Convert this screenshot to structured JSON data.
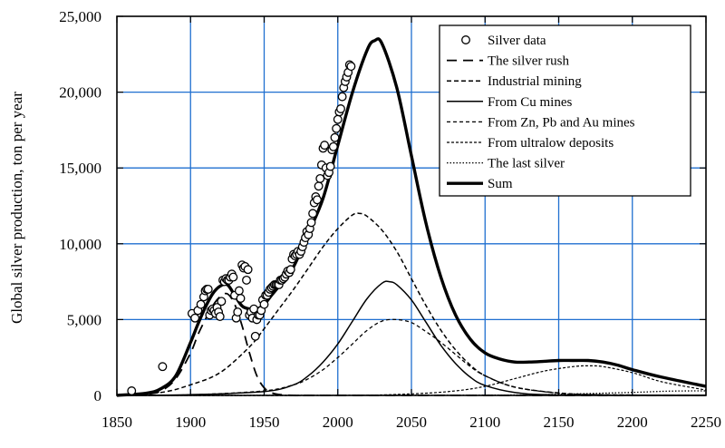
{
  "chart_data": {
    "type": "line",
    "title": "",
    "xlabel": "",
    "ylabel": "Global silver production, ton per year",
    "xlim": [
      1850,
      2250
    ],
    "ylim": [
      0,
      25000
    ],
    "x_ticks": [
      1850,
      1900,
      1950,
      2000,
      2050,
      2100,
      2150,
      2200,
      2250
    ],
    "x_tick_labels": [
      "1850",
      "1900",
      "1950",
      "2000",
      "2050",
      "2100",
      "2150",
      "2200",
      "2250"
    ],
    "y_ticks": [
      0,
      5000,
      10000,
      15000,
      20000,
      25000
    ],
    "y_tick_labels": [
      "0",
      "5,000",
      "10,000",
      "15,000",
      "20,000",
      "25,000"
    ],
    "grid": true,
    "grid_color": "#1f6fd0",
    "legend_position": "top-right",
    "series": [
      {
        "name": "Silver data",
        "style": "markers",
        "x": [
          1860,
          1881,
          1901,
          1903,
          1905,
          1907,
          1909,
          1910,
          1911,
          1912,
          1913,
          1914,
          1915,
          1916,
          1917,
          1918,
          1919,
          1920,
          1921,
          1922,
          1923,
          1924,
          1925,
          1926,
          1927,
          1928,
          1929,
          1930,
          1931,
          1932,
          1933,
          1934,
          1935,
          1936,
          1937,
          1938,
          1939,
          1940,
          1941,
          1942,
          1943,
          1944,
          1945,
          1946,
          1947,
          1948,
          1949,
          1950,
          1951,
          1952,
          1953,
          1954,
          1955,
          1956,
          1957,
          1958,
          1959,
          1960,
          1961,
          1962,
          1963,
          1964,
          1965,
          1966,
          1967,
          1968,
          1969,
          1970,
          1971,
          1972,
          1973,
          1974,
          1975,
          1976,
          1977,
          1978,
          1979,
          1980,
          1981,
          1982,
          1983,
          1984,
          1985,
          1986,
          1987,
          1988,
          1989,
          1990,
          1991,
          1992,
          1993,
          1994,
          1995,
          1996,
          1997,
          1998,
          1999,
          2000,
          2001,
          2002,
          2003,
          2004,
          2005,
          2006,
          2007,
          2008,
          2009
        ],
        "y": [
          300,
          1900,
          5400,
          5100,
          5600,
          6000,
          6500,
          6900,
          7000,
          7000,
          5300,
          5600,
          5700,
          5600,
          5400,
          5800,
          5500,
          5200,
          6200,
          7600,
          7500,
          7700,
          7600,
          7600,
          7800,
          8000,
          7800,
          6600,
          5100,
          5500,
          6900,
          6400,
          8600,
          8400,
          8500,
          7600,
          8300,
          5300,
          5500,
          5100,
          5700,
          3900,
          5000,
          5300,
          5300,
          5600,
          6300,
          6000,
          6600,
          6600,
          6800,
          7000,
          7100,
          7200,
          7300,
          7300,
          7300,
          7300,
          7600,
          7600,
          7700,
          7800,
          8000,
          8200,
          8100,
          8300,
          9000,
          9300,
          9200,
          9300,
          9500,
          9300,
          9500,
          9800,
          10100,
          10400,
          10800,
          10600,
          11000,
          11400,
          12000,
          12700,
          13100,
          12900,
          13800,
          14300,
          15200,
          16300,
          16500,
          15000,
          14500,
          14700,
          15100,
          16200,
          16400,
          17000,
          17600,
          18200,
          18700,
          18900,
          19700,
          20300,
          20700,
          21000,
          21300,
          21800,
          21700
        ]
      },
      {
        "name": "The silver rush",
        "style": "long-dash",
        "x": [
          1850,
          1870,
          1880,
          1890,
          1900,
          1905,
          1910,
          1915,
          1920,
          1925,
          1930,
          1935,
          1940,
          1945,
          1950,
          1955,
          1960,
          1970,
          1980,
          2000,
          2250
        ],
        "y": [
          0,
          80,
          300,
          1100,
          2800,
          4000,
          5000,
          5900,
          6500,
          6700,
          6000,
          4600,
          2800,
          1300,
          500,
          180,
          60,
          0,
          0,
          0,
          0
        ]
      },
      {
        "name": "Industrial mining",
        "style": "short-dash",
        "x": [
          1850,
          1880,
          1900,
          1920,
          1940,
          1950,
          1960,
          1970,
          1980,
          1990,
          2000,
          2010,
          2015,
          2020,
          2030,
          2040,
          2050,
          2060,
          2070,
          2080,
          2090,
          2100,
          2120,
          2150,
          2180,
          2250
        ],
        "y": [
          50,
          200,
          700,
          1500,
          3200,
          4400,
          5700,
          7000,
          8400,
          9800,
          11000,
          11900,
          12000,
          11800,
          10900,
          9500,
          7700,
          5900,
          4300,
          3000,
          2000,
          1300,
          550,
          160,
          40,
          0
        ]
      },
      {
        "name": "From Cu mines",
        "style": "solid",
        "x": [
          1850,
          1900,
          1950,
          1970,
          1980,
          1990,
          2000,
          2010,
          2020,
          2030,
          2035,
          2040,
          2050,
          2060,
          2070,
          2080,
          2090,
          2100,
          2120,
          2150,
          2250
        ],
        "y": [
          0,
          50,
          250,
          700,
          1300,
          2200,
          3400,
          4900,
          6400,
          7400,
          7500,
          7300,
          6300,
          4800,
          3300,
          2100,
          1200,
          650,
          200,
          30,
          0
        ]
      },
      {
        "name": "From Zn, Pb and Au mines",
        "style": "dash",
        "x": [
          1850,
          1900,
          1950,
          1970,
          1980,
          1990,
          2000,
          2010,
          2020,
          2030,
          2040,
          2050,
          2060,
          2070,
          2080,
          2090,
          2100,
          2120,
          2150,
          2180,
          2250
        ],
        "y": [
          0,
          40,
          300,
          700,
          1100,
          1700,
          2500,
          3400,
          4300,
          4900,
          5000,
          4800,
          4200,
          3500,
          2700,
          1900,
          1300,
          550,
          150,
          40,
          0
        ]
      },
      {
        "name": "From ultralow deposits",
        "style": "fine-dash",
        "x": [
          1850,
          2000,
          2050,
          2080,
          2100,
          2120,
          2140,
          2160,
          2170,
          2180,
          2200,
          2220,
          2250
        ],
        "y": [
          0,
          0,
          100,
          300,
          600,
          1100,
          1600,
          1900,
          1950,
          1900,
          1500,
          900,
          350
        ]
      },
      {
        "name": "The last silver",
        "style": "dotted",
        "x": [
          1850,
          2100,
          2150,
          2200,
          2225,
          2250
        ],
        "y": [
          0,
          20,
          80,
          200,
          280,
          300
        ]
      },
      {
        "name": "Sum",
        "style": "thick-solid",
        "x": [
          1850,
          1870,
          1880,
          1890,
          1900,
          1905,
          1910,
          1915,
          1920,
          1925,
          1930,
          1935,
          1940,
          1945,
          1950,
          1955,
          1960,
          1970,
          1980,
          1990,
          2000,
          2010,
          2020,
          2025,
          2030,
          2040,
          2050,
          2060,
          2070,
          2080,
          2090,
          2100,
          2110,
          2120,
          2130,
          2140,
          2150,
          2160,
          2170,
          2180,
          2190,
          2200,
          2220,
          2250
        ],
        "y": [
          0,
          150,
          450,
          1300,
          3500,
          4700,
          5800,
          6700,
          7200,
          7300,
          6600,
          5900,
          5700,
          5700,
          6000,
          6600,
          7200,
          8500,
          10700,
          13000,
          16500,
          20000,
          22800,
          23400,
          23200,
          20300,
          15800,
          11300,
          7800,
          5300,
          3700,
          2800,
          2400,
          2200,
          2200,
          2250,
          2300,
          2300,
          2300,
          2200,
          2000,
          1700,
          1200,
          600
        ]
      }
    ]
  }
}
